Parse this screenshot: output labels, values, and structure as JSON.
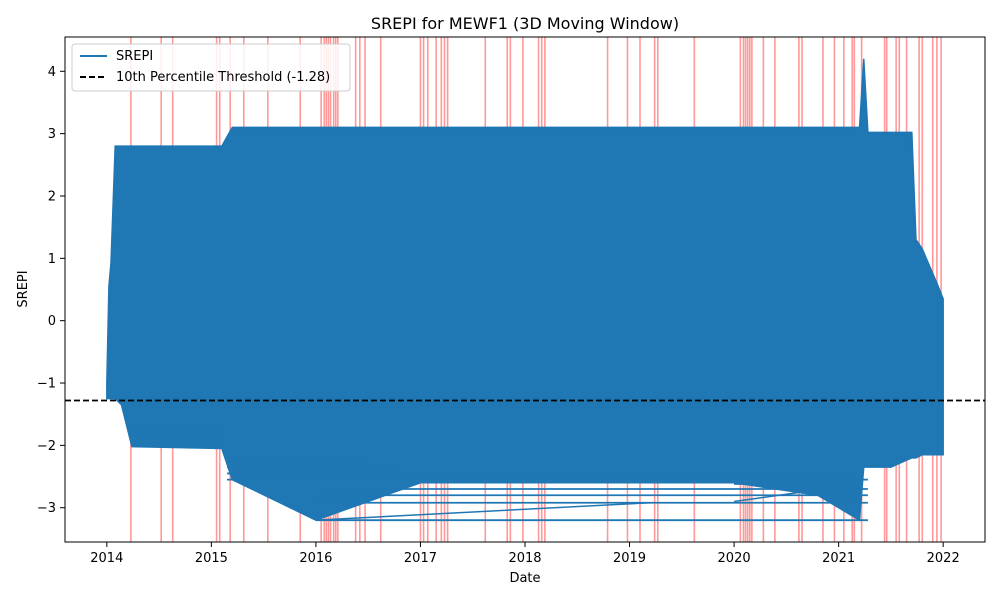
{
  "chart_data": {
    "type": "line",
    "title": "SREPI for MEWF1 (3D Moving Window)",
    "xlabel": "Date",
    "ylabel": "SREPI",
    "x_ticks": [
      "2014",
      "2015",
      "2016",
      "2017",
      "2018",
      "2019",
      "2020",
      "2021",
      "2022"
    ],
    "y_ticks": [
      "−3",
      "−2",
      "−1",
      "0",
      "1",
      "2",
      "3",
      "4"
    ],
    "xlim": [
      2013.6,
      2022.4
    ],
    "ylim": [
      -3.55,
      4.55
    ],
    "grid": false,
    "legend_position": "top-left",
    "threshold": {
      "value": -1.28,
      "label": "10th Percentile Threshold (-1.28)",
      "color": "#000000",
      "style": "dashed"
    },
    "series": [
      {
        "name": "SREPI",
        "color": "#1f77b4",
        "envelope": [
          {
            "x": 2014.0,
            "top": -1.0,
            "bottom": -1.25
          },
          {
            "x": 2014.02,
            "top": 0.55,
            "bottom": -1.25
          },
          {
            "x": 2014.04,
            "top": 0.93,
            "bottom": -1.25
          },
          {
            "x": 2014.08,
            "top": 2.8,
            "bottom": -1.25
          },
          {
            "x": 2014.14,
            "top": 2.8,
            "bottom": -1.35
          },
          {
            "x": 2014.24,
            "top": 2.8,
            "bottom": -2.02
          },
          {
            "x": 2015.1,
            "top": 2.8,
            "bottom": -2.05
          },
          {
            "x": 2015.2,
            "top": 3.1,
            "bottom": -2.55
          },
          {
            "x": 2016.0,
            "top": 3.1,
            "bottom": -3.2
          },
          {
            "x": 2017.0,
            "top": 3.1,
            "bottom": -2.6
          },
          {
            "x": 2018.0,
            "top": 3.1,
            "bottom": -2.6
          },
          {
            "x": 2019.0,
            "top": 3.1,
            "bottom": -2.6
          },
          {
            "x": 2020.0,
            "top": 3.1,
            "bottom": -2.6
          },
          {
            "x": 2020.8,
            "top": 3.1,
            "bottom": -2.8
          },
          {
            "x": 2021.2,
            "top": 3.1,
            "bottom": -3.2
          },
          {
            "x": 2021.24,
            "top": 4.2,
            "bottom": -2.35
          },
          {
            "x": 2021.28,
            "top": 3.02,
            "bottom": -2.35
          },
          {
            "x": 2021.5,
            "top": 3.02,
            "bottom": -2.35
          },
          {
            "x": 2021.7,
            "top": 3.02,
            "bottom": -2.2
          },
          {
            "x": 2021.74,
            "top": 1.3,
            "bottom": -2.2
          },
          {
            "x": 2021.8,
            "top": 1.15,
            "bottom": -2.15
          },
          {
            "x": 2021.94,
            "top": 0.6,
            "bottom": -2.15
          },
          {
            "x": 2022.0,
            "top": 0.35,
            "bottom": -2.15
          }
        ],
        "horizontal_traces": [
          {
            "x0": 2016.0,
            "x1": 2021.28,
            "y": -3.2
          },
          {
            "x0": 2016.0,
            "x1": 2021.28,
            "y": -2.92
          },
          {
            "x0": 2016.1,
            "x1": 2021.28,
            "y": -2.8
          },
          {
            "x0": 2016.1,
            "x1": 2021.28,
            "y": -2.7
          },
          {
            "x0": 2015.15,
            "x1": 2021.28,
            "y": -2.55
          },
          {
            "x0": 2015.15,
            "x1": 2017.1,
            "y": -2.45
          },
          {
            "x0": 2015.15,
            "x1": 2016.8,
            "y": -2.35
          },
          {
            "x0": 2015.15,
            "x1": 2016.5,
            "y": -2.25
          },
          {
            "x0": 2014.24,
            "x1": 2015.1,
            "y": -2.0
          },
          {
            "x0": 2014.24,
            "x1": 2015.1,
            "y": -1.85
          },
          {
            "x0": 2014.24,
            "x1": 2015.1,
            "y": -1.7
          },
          {
            "x0": 2020.0,
            "x1": 2021.2,
            "y": -2.62
          }
        ],
        "diagonal_traces": [
          {
            "x0": 2016.0,
            "y0": -3.2,
            "x1": 2019.2,
            "y1": -2.92
          },
          {
            "x0": 2020.0,
            "y0": -2.9,
            "x1": 2021.2,
            "y1": -2.62
          }
        ]
      }
    ],
    "drought_markers": {
      "color": "#ff0000",
      "opacity": 0.4,
      "x": [
        2014.23,
        2014.52,
        2014.63,
        2015.05,
        2015.08,
        2015.18,
        2015.31,
        2015.54,
        2015.85,
        2016.05,
        2016.08,
        2016.1,
        2016.12,
        2016.14,
        2016.17,
        2016.19,
        2016.21,
        2016.38,
        2016.42,
        2016.47,
        2016.62,
        2017.0,
        2017.03,
        2017.07,
        2017.15,
        2017.2,
        2017.23,
        2017.26,
        2017.62,
        2017.83,
        2017.86,
        2017.98,
        2018.13,
        2018.16,
        2018.19,
        2018.79,
        2018.98,
        2019.1,
        2019.24,
        2019.27,
        2019.62,
        2020.06,
        2020.09,
        2020.11,
        2020.13,
        2020.15,
        2020.17,
        2020.28,
        2020.39,
        2020.62,
        2020.65,
        2020.85,
        2020.96,
        2021.05,
        2021.13,
        2021.15,
        2021.22,
        2021.44,
        2021.46,
        2021.55,
        2021.58,
        2021.65,
        2021.77,
        2021.8,
        2021.9,
        2021.94,
        2021.98
      ]
    }
  }
}
